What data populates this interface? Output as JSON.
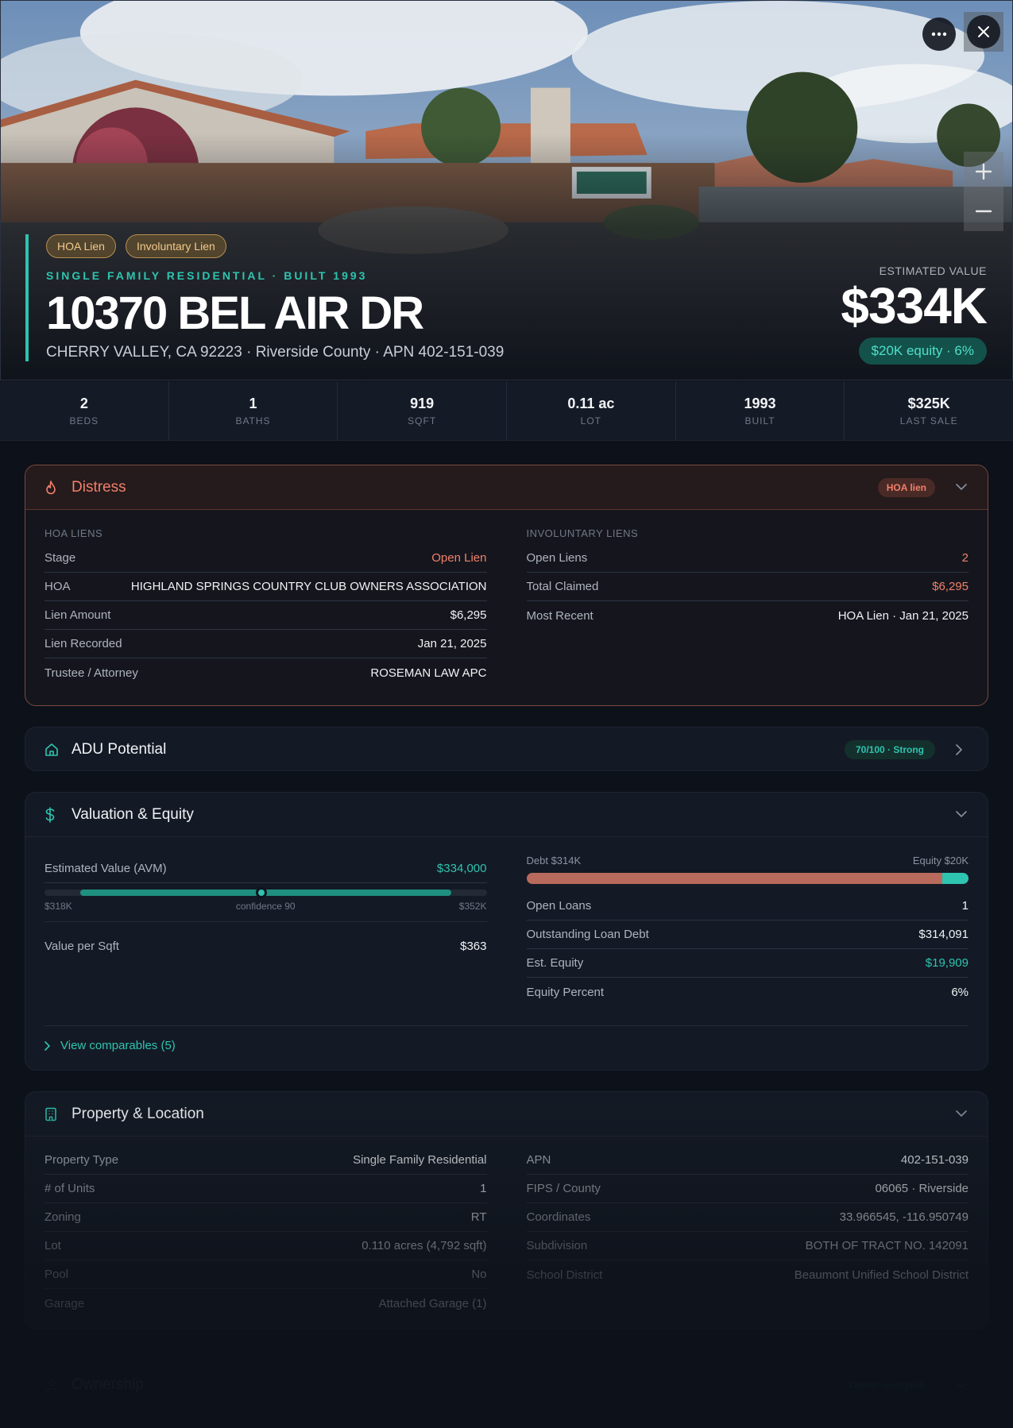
{
  "hero": {
    "pills": [
      "HOA Lien",
      "Involuntary Lien"
    ],
    "kicker": "SINGLE FAMILY RESIDENTIAL · BUILT 1993",
    "title": "10370 BEL AIR DR",
    "subtitle": "CHERRY VALLEY, CA 92223 · Riverside County · APN 402-151-039",
    "estimated_value_label": "ESTIMATED VALUE",
    "estimated_value": "$334K",
    "equity_badge": "$20K equity · 6%"
  },
  "stats": [
    {
      "value": "2",
      "label": "BEDS"
    },
    {
      "value": "1",
      "label": "BATHS"
    },
    {
      "value": "919",
      "label": "SQFT"
    },
    {
      "value": "0.11 ac",
      "label": "LOT"
    },
    {
      "value": "1993",
      "label": "BUILT"
    },
    {
      "value": "$325K",
      "label": "LAST SALE"
    }
  ],
  "distress": {
    "title": "Distress",
    "badge": "HOA lien",
    "hoa_label": "HOA LIENS",
    "hoa_rows": [
      {
        "k": "Stage",
        "v": "Open Lien"
      },
      {
        "k": "HOA",
        "v": "HIGHLAND SPRINGS COUNTRY CLUB OWNERS ASSOCIATION"
      },
      {
        "k": "Lien Amount",
        "v": "$6,295"
      },
      {
        "k": "Lien Recorded",
        "v": "Jan 21, 2025"
      },
      {
        "k": "Trustee / Attorney",
        "v": "ROSEMAN LAW APC"
      }
    ],
    "inv_label": "INVOLUNTARY LIENS",
    "inv_rows": [
      {
        "k": "Open Liens",
        "v": "2"
      },
      {
        "k": "Total Claimed",
        "v": "$6,295"
      },
      {
        "k": "Most Recent",
        "v": "HOA Lien · Jan 21, 2025"
      }
    ]
  },
  "adu": {
    "title": "ADU Potential",
    "badge": "70/100 · Strong"
  },
  "valuation": {
    "title": "Valuation & Equity",
    "avm_label": "Estimated Value (AVM)",
    "avm_value": "$334,000",
    "range_low": "$318K",
    "confidence": "confidence 90",
    "range_high": "$352K",
    "range_position": 0.49,
    "vps_label": "Value per Sqft",
    "vps_value": "$363",
    "debt_label": "Debt $314K",
    "equity_label": "Equity $20K",
    "debt_fraction": 0.94,
    "rows": [
      {
        "k": "Open Loans",
        "v": "1"
      },
      {
        "k": "Outstanding Loan Debt",
        "v": "$314,091"
      },
      {
        "k": "Est. Equity",
        "v": "$19,909"
      },
      {
        "k": "Equity Percent",
        "v": "6%"
      }
    ],
    "comparables": "View comparables (5)"
  },
  "property": {
    "title": "Property & Location",
    "left_rows": [
      {
        "k": "Property Type",
        "v": "Single Family Residential"
      },
      {
        "k": "# of Units",
        "v": "1"
      },
      {
        "k": "Zoning",
        "v": "RT"
      },
      {
        "k": "Lot",
        "v": "0.110 acres (4,792 sqft)"
      },
      {
        "k": "Pool",
        "v": "No"
      },
      {
        "k": "Garage",
        "v": "Attached Garage (1)"
      }
    ],
    "right_rows": [
      {
        "k": "APN",
        "v": "402-151-039"
      },
      {
        "k": "FIPS / County",
        "v": "06065 · Riverside"
      },
      {
        "k": "Coordinates",
        "v": "33.966545, -116.950749"
      },
      {
        "k": "Subdivision",
        "v": "BOTH OF TRACT NO. 142091"
      },
      {
        "k": "School District",
        "v": "Beaumont Unified School District"
      }
    ]
  },
  "ownership": {
    "title": "Ownership",
    "badge": "Owner-occupied"
  },
  "colors": {
    "accent": "#2ec4b0",
    "distress": "#f0806a",
    "lien_pill": "#f2c989",
    "debt": "#b86a5c"
  }
}
